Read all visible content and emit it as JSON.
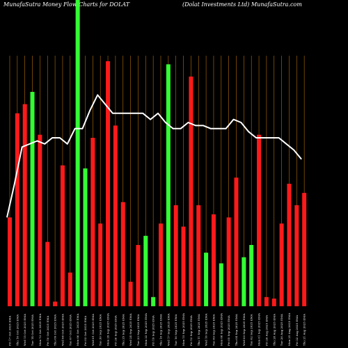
{
  "chart_data": {
    "type": "bar",
    "title_left": "MunafaSutra  Money Flow  Charts for DOLAT",
    "title_right": "(Dolat Investments Ltd) MunafaSutra.com",
    "colors": {
      "background": "#000000",
      "up": "#33ff33",
      "down": "#ff1a1a",
      "grid": "#b8700a",
      "line": "#ffffff"
    },
    "grid": true,
    "ylim": [
      0,
      100
    ],
    "bars": [
      {
        "value": 29,
        "color": "down",
        "label": "Fri 17 Oct 2025 EMA"
      },
      {
        "value": 63,
        "color": "down",
        "label": "Thu 16 Oct 2025 EMA"
      },
      {
        "value": 66,
        "color": "down",
        "label": "Wed 15 Oct 2025 EMA"
      },
      {
        "value": 70,
        "color": "up",
        "label": "Tue 14 Oct 2025 EMA"
      },
      {
        "value": 56,
        "color": "down",
        "label": "Mon 13 Oct 2025 EMA"
      },
      {
        "value": 21,
        "color": "down",
        "label": "Fri 10 Oct 2025 EMA"
      },
      {
        "value": 1.5,
        "color": "down",
        "label": "Thu 09 Oct 2025 EMA"
      },
      {
        "value": 46,
        "color": "down",
        "label": "Wed 08 Oct 2025 EMA"
      },
      {
        "value": 11,
        "color": "down",
        "label": "Tue 07 Oct 2025 EMA"
      },
      {
        "value": 100,
        "color": "up",
        "label": "Mon 06 Oct 2025 EMA"
      },
      {
        "value": 45,
        "color": "up",
        "label": "Fri 03 Oct 2025 EMA"
      },
      {
        "value": 55,
        "color": "down",
        "label": "Wed 01 Oct 2025 EMA"
      },
      {
        "value": 27,
        "color": "down",
        "label": "Tue 30 Sep 2025 EMA"
      },
      {
        "value": 80,
        "color": "down",
        "label": "Mon 29 Sep 2025 EMA"
      },
      {
        "value": 59,
        "color": "down",
        "label": "Fri 26 Sep 2025 EMA"
      },
      {
        "value": 34,
        "color": "down",
        "label": "Thu 25 Sep 2025 EMA"
      },
      {
        "value": 8,
        "color": "down",
        "label": "Wed 24 Sep 2025 EMA"
      },
      {
        "value": 20,
        "color": "down",
        "label": "Tue 23 Sep 2025 EMA"
      },
      {
        "value": 23,
        "color": "up",
        "label": "Mon 22 Sep 2025 EMA"
      },
      {
        "value": 3,
        "color": "up",
        "label": "Fri 19 Sep 2025 EMA"
      },
      {
        "value": 27,
        "color": "down",
        "label": "Thu 18 Sep 2025 EMA"
      },
      {
        "value": 79,
        "color": "up",
        "label": "Wed 17 Sep 2025 EMA"
      },
      {
        "value": 33,
        "color": "down",
        "label": "Tue 16 Sep 2025 EMA"
      },
      {
        "value": 26,
        "color": "down",
        "label": "Mon 15 Sep 2025 EMA"
      },
      {
        "value": 75,
        "color": "down",
        "label": "Fri 12 Sep 2025 EMA"
      },
      {
        "value": 33,
        "color": "down",
        "label": "Thu 11 Sep 2025 EMA"
      },
      {
        "value": 17.5,
        "color": "up",
        "label": "Wed 10 Sep 2025 EMA"
      },
      {
        "value": 30,
        "color": "down",
        "label": "Tue 09 Sep 2025 EMA"
      },
      {
        "value": 14,
        "color": "up",
        "label": "Mon 08 Sep 2025 EMA"
      },
      {
        "value": 29,
        "color": "down",
        "label": "Fri 05 Sep 2025 EMA"
      },
      {
        "value": 42,
        "color": "down",
        "label": "Thu 04 Sep 2025 EMA"
      },
      {
        "value": 16,
        "color": "up",
        "label": "Wed 03 Sep 2025 EMA"
      },
      {
        "value": 20,
        "color": "up",
        "label": "Tue 02 Sep 2025 EMA"
      },
      {
        "value": 56,
        "color": "down",
        "label": "Mon 01 Sep 2025 EMA"
      },
      {
        "value": 3,
        "color": "down",
        "label": "Fri 29 Aug 2025 EMA"
      },
      {
        "value": 2.5,
        "color": "down",
        "label": "Thu 28 Aug 2025 EMA"
      },
      {
        "value": 27,
        "color": "down",
        "label": "Tue 26 Aug 2025 EMA"
      },
      {
        "value": 40,
        "color": "down",
        "label": "Mon 25 Aug 2025 EMA"
      },
      {
        "value": 33,
        "color": "down",
        "label": "Fri 22 Aug 2025 EMA"
      },
      {
        "value": 37,
        "color": "down",
        "label": "Thu 21 Aug 2025 EMA"
      }
    ],
    "line": [
      29,
      40,
      52,
      53,
      54,
      53,
      55,
      55,
      53,
      58,
      58,
      64,
      69,
      66,
      63,
      63,
      63,
      63,
      63,
      61,
      63,
      60,
      58,
      58,
      60,
      59,
      59,
      58,
      58,
      58,
      61,
      60,
      57,
      55,
      55,
      55,
      55,
      53,
      51,
      48
    ]
  }
}
